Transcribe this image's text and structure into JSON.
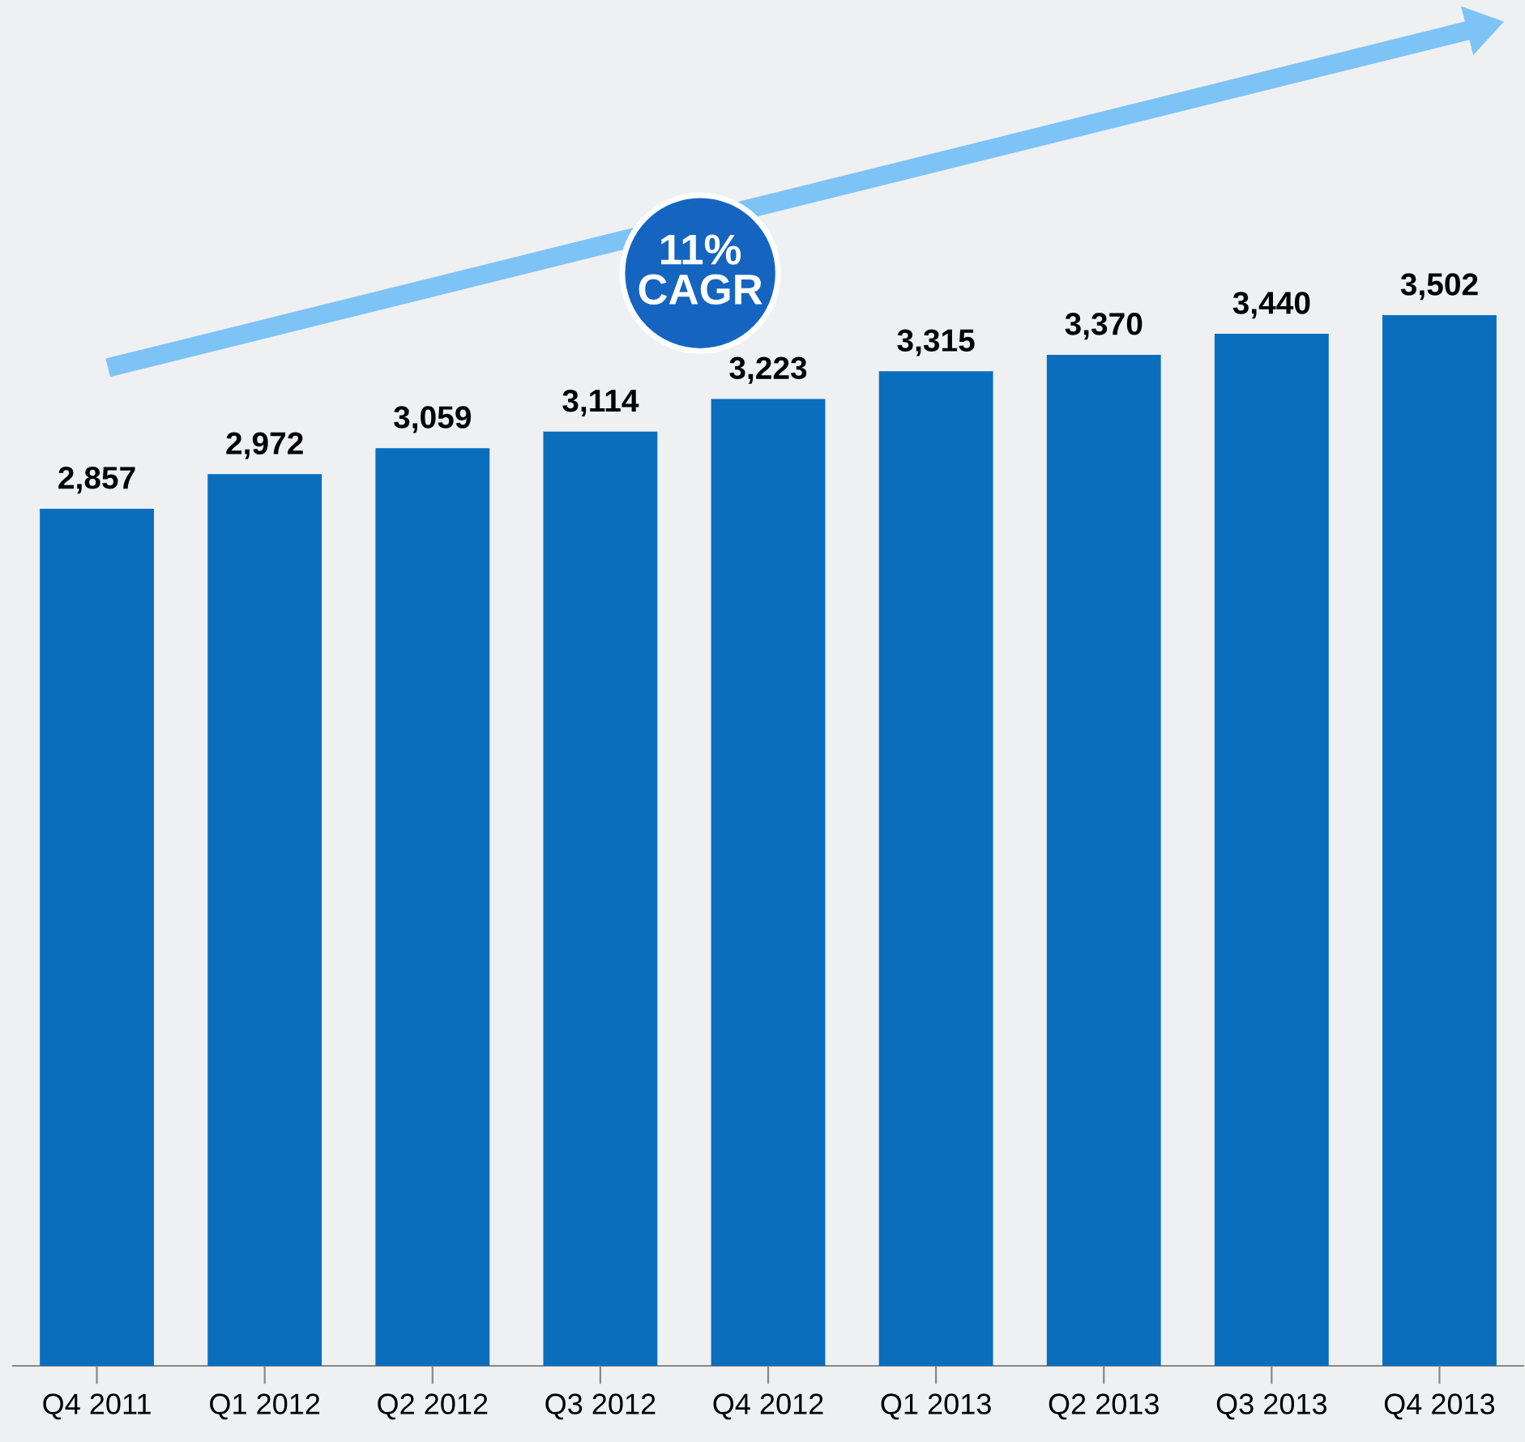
{
  "chart_data": {
    "type": "bar",
    "categories": [
      "Q4 2011",
      "Q1 2012",
      "Q2 2012",
      "Q3 2012",
      "Q4 2012",
      "Q1 2013",
      "Q2 2013",
      "Q3 2013",
      "Q4 2013"
    ],
    "values": [
      2857,
      2972,
      3059,
      3114,
      3223,
      3315,
      3370,
      3440,
      3502
    ],
    "value_labels": [
      "2,857",
      "2,972",
      "3,059",
      "3,114",
      "3,223",
      "3,315",
      "3,370",
      "3,440",
      "3,502"
    ],
    "color": "#0a6ebd",
    "tick_labels": "x",
    "annotations": [
      "11%\nCAGR"
    ]
  }
}
